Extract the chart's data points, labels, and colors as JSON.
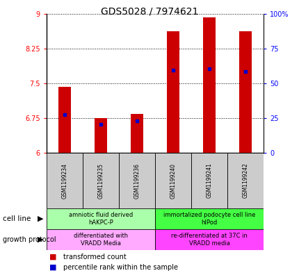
{
  "title": "GDS5028 / 7974621",
  "samples": [
    "GSM1199234",
    "GSM1199235",
    "GSM1199236",
    "GSM1199240",
    "GSM1199241",
    "GSM1199242"
  ],
  "bar_bottoms": [
    6.0,
    6.0,
    6.0,
    6.0,
    6.0,
    6.0
  ],
  "bar_tops": [
    7.43,
    6.75,
    6.84,
    8.62,
    8.92,
    8.62
  ],
  "percentile_values": [
    6.82,
    6.62,
    6.69,
    7.78,
    7.82,
    7.76
  ],
  "ylim": [
    6.0,
    9.0
  ],
  "yticks": [
    6,
    6.75,
    7.5,
    8.25,
    9
  ],
  "ytick_labels": [
    "6",
    "6.75",
    "7.5",
    "8.25",
    "9"
  ],
  "right_ytick_labels": [
    "0",
    "25",
    "50",
    "75",
    "100%"
  ],
  "bar_color": "#cc0000",
  "percentile_color": "#0000cc",
  "cell_line_groups": [
    {
      "label": "amniotic fluid derived\nhAKPC-P",
      "color": "#aaffaa",
      "start": 0,
      "end": 3
    },
    {
      "label": "immortalized podocyte cell line\nhIPod",
      "color": "#44ff44",
      "start": 3,
      "end": 6
    }
  ],
  "growth_protocol_groups": [
    {
      "label": "differentiated with\nVRADD Media",
      "color": "#ffaaff",
      "start": 0,
      "end": 3
    },
    {
      "label": "re-differentiated at 37C in\nVRADD media",
      "color": "#ff44ff",
      "start": 3,
      "end": 6
    }
  ],
  "background_color": "#ffffff",
  "sample_bg_color": "#cccccc",
  "bar_width": 0.35,
  "title_fontsize": 10,
  "tick_fontsize": 7,
  "sample_fontsize": 5.5,
  "label_fontsize": 6,
  "legend_fontsize": 7
}
